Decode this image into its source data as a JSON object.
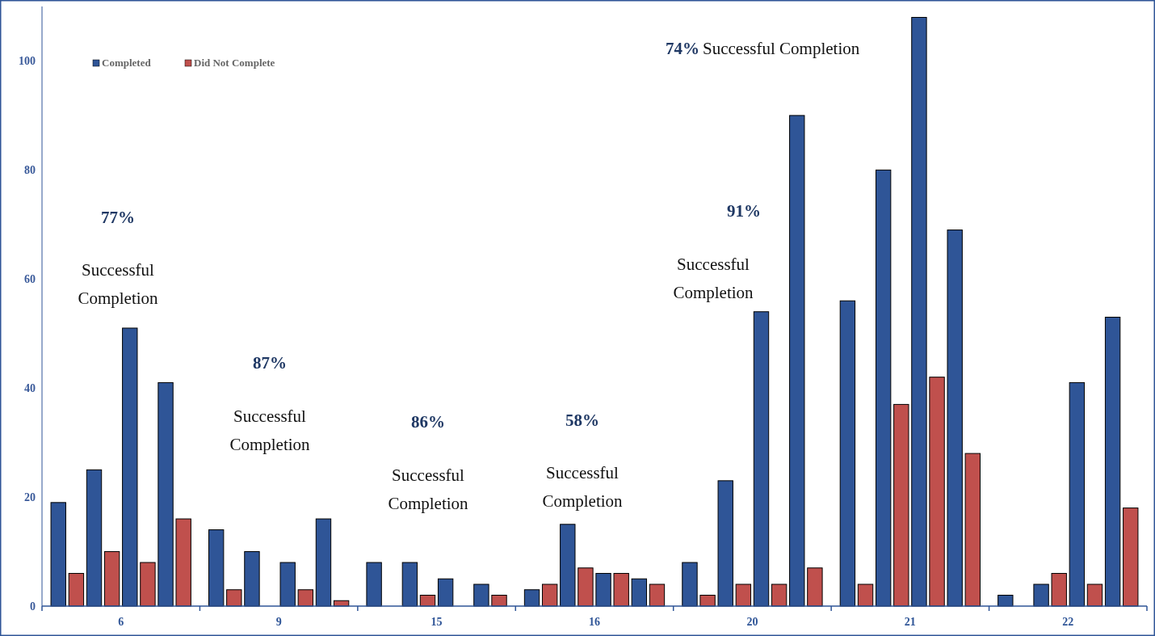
{
  "chart_data": {
    "type": "bar",
    "categories": [
      "6",
      "9",
      "15",
      "16",
      "20",
      "21",
      "22"
    ],
    "series": [
      {
        "name": "Completed",
        "color": "#2f5597",
        "values": [
          19,
          14,
          8,
          3,
          8,
          56,
          2
        ]
      },
      {
        "name": "Did Not Complete",
        "color": "#c0504d",
        "values": [
          6,
          3,
          0,
          4,
          2,
          4,
          0
        ]
      },
      {
        "color": "#2f5597",
        "values": [
          25,
          10,
          8,
          15,
          23,
          80,
          4
        ]
      },
      {
        "color": "#c0504d",
        "values": [
          10,
          0,
          2,
          7,
          4,
          37,
          6
        ]
      },
      {
        "color": "#2f5597",
        "values": [
          51,
          8,
          5,
          6,
          54,
          108,
          41
        ]
      },
      {
        "color": "#c0504d",
        "values": [
          8,
          3,
          0,
          6,
          4,
          42,
          4
        ]
      },
      {
        "color": "#2f5597",
        "values": [
          41,
          16,
          4,
          5,
          90,
          69,
          53
        ]
      },
      {
        "color": "#c0504d",
        "values": [
          16,
          1,
          2,
          4,
          7,
          28,
          18
        ]
      }
    ],
    "ylim": [
      0,
      110
    ],
    "yticks": [
      0,
      20,
      40,
      60,
      80,
      100
    ],
    "grid": false,
    "legend": "top left",
    "annotations": [
      "77%",
      "Successful Completion",
      "87%",
      "Successful Completion",
      "86%",
      "Successful Completion",
      "58%",
      "Successful Completion",
      "91%",
      "Successful Completion",
      "74%",
      "Successful Completion"
    ]
  }
}
